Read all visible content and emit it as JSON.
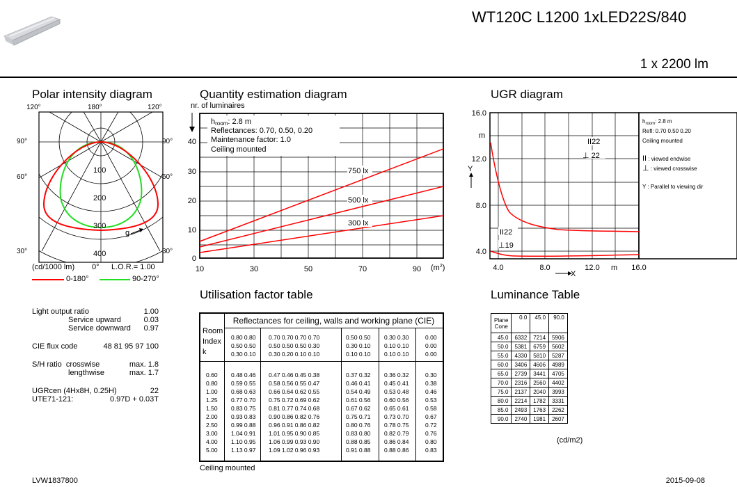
{
  "header": {
    "product": "WT120C L1200 1xLED22S/840",
    "flux": "1 x 2200 lm"
  },
  "polar": {
    "title": "Polar intensity diagram",
    "top_labels": [
      "120°",
      "180°",
      "120°"
    ],
    "side_left": [
      "90°",
      "60°",
      "30°"
    ],
    "side_right": [
      "90°",
      "60°",
      "30°"
    ],
    "rings": [
      "100",
      "200",
      "300",
      "400"
    ],
    "gamma_label": "g",
    "unit": "(cd/1000 lm)",
    "zero": "0°",
    "lor": "L.O.R.= 1.00",
    "legend_red": "0-180°",
    "legend_green": "90-270°",
    "red_color": "#ff0000",
    "green_color": "#22dd22"
  },
  "specs": {
    "rows": [
      {
        "label": "Light output ratio",
        "value": "1.00"
      },
      {
        "label": "Service upward",
        "value": "0.03"
      },
      {
        "label": "Service downward",
        "value": "0.97"
      }
    ],
    "cie_label": "CIE flux code",
    "cie_value": "48 81 95 97 100",
    "sh_label": "S/H ratio",
    "sh_cross": "crosswise",
    "sh_cross_val": "max. 1.8",
    "sh_length": "lengthwise",
    "sh_length_val": "max. 1.7",
    "ugr_label": "UGRcen (4Hx8H, 0.25H)",
    "ugr_value": "22",
    "ute_label": "UTE71-121:",
    "ute_value": "0.97D + 0.03T"
  },
  "quantity": {
    "title": "Quantity estimation diagram",
    "ylabel": "nr. of luminaires",
    "info": [
      "h",
      "room",
      ": 2.8 m",
      "Reflectances: 0.70, 0.50, 0.20",
      "Maintenance factor: 1.0",
      "Ceiling mounted"
    ],
    "y_ticks": [
      "40",
      "30",
      "20",
      "10",
      "0"
    ],
    "x_ticks": [
      "10",
      "30",
      "50",
      "70",
      "90"
    ],
    "x_unit": "(m",
    "x_unit_sup": "2",
    "x_unit_end": ")",
    "lines": [
      "750 lx",
      "500 lx",
      "300 lx"
    ]
  },
  "ugr": {
    "title": "UGR diagram",
    "y_ticks": [
      "16.0",
      "12.0",
      "8.0",
      "4.0"
    ],
    "y_unit": "m",
    "y_axis": "Y",
    "x_ticks": [
      "4.0",
      "8.0",
      "12.0",
      "16.0"
    ],
    "x_axis": "X",
    "x_unit": "m",
    "marker_end_22": "22",
    "marker_cross_22": "22",
    "marker_end_low": "22",
    "marker_cross_low": "19",
    "info": [
      "h",
      "room",
      ": 2.8 m",
      "Refl: 0.70 0.50 0.20",
      "Ceiling mounted",
      ": viewed endwise",
      ": viewed crosswise",
      "Y  : Parallel to viewing dir"
    ]
  },
  "utilisation": {
    "title": "Utilisation factor table",
    "header": "Reflectances for ceiling, walls and working plane (CIE)",
    "room_label": [
      "Room",
      "Index",
      "k"
    ],
    "refl_groups": [
      [
        "0.80 0.80",
        "0.50 0.50",
        "0.30 0.10"
      ],
      [
        "0.70 0.70 0.70 0.70",
        "0.50 0.50 0.50 0.30",
        "0.30 0.20 0.10 0.10"
      ],
      [
        "0.50 0.50",
        "0.30 0.10",
        "0.10 0.10"
      ],
      [
        "0.30 0.30",
        "0.10 0.10",
        "0.10 0.10"
      ],
      [
        "0.00",
        "0.00",
        "0.00"
      ]
    ],
    "k": [
      "0.60",
      "0.80",
      "1.00",
      "1.25",
      "1.50",
      "2.00",
      "2.50",
      "3.00",
      "4.00",
      "5.00"
    ],
    "g1": [
      "0.48 0.46",
      "0.59 0.55",
      "0.68 0.63",
      "0.77 0.70",
      "0.83 0.75",
      "0.93 0.83",
      "0.99 0.88",
      "1.04 0.91",
      "1.10 0.95",
      "1.13 0.97"
    ],
    "g2": [
      "0.47 0.46 0.45 0.38",
      "0.58 0.56 0.55 0.47",
      "0.66 0.64 0.62 0.55",
      "0.75 0.72 0.69 0.62",
      "0.81 0.77 0.74 0.68",
      "0.90 0.86 0.82 0.76",
      "0.96 0.91 0.86 0.82",
      "1.01 0.95 0.90 0.85",
      "1.06 0.99 0.93 0.90",
      "1.09 1.02 0.96 0.93"
    ],
    "g3": [
      "0.37 0.32",
      "0.46 0.41",
      "0.54 0.49",
      "0.61 0.56",
      "0.67 0.62",
      "0.75 0.71",
      "0.80 0.76",
      "0.83 0.80",
      "0.88 0.85",
      "0.91 0.88"
    ],
    "g4": [
      "0.36 0.32",
      "0.45 0.41",
      "0.53 0.48",
      "0.60 0.56",
      "0.65 0.61",
      "0.73 0.70",
      "0.78 0.75",
      "0.82 0.79",
      "0.86 0.84",
      "0.88 0.86"
    ],
    "g5": [
      "0.30",
      "0.38",
      "0.46",
      "0.53",
      "0.58",
      "0.67",
      "0.72",
      "0.76",
      "0.80",
      "0.83"
    ],
    "footer": "Ceiling mounted"
  },
  "luminance": {
    "title": "Luminance Table",
    "head_label": [
      "Plane",
      "Cone"
    ],
    "cols": [
      "0.0",
      "45.0",
      "90.0"
    ],
    "rows": [
      [
        "45.0",
        "6332",
        "7214",
        "5906"
      ],
      [
        "50.0",
        "5381",
        "6759",
        "5602"
      ],
      [
        "55.0",
        "4330",
        "5810",
        "5287"
      ],
      [
        "60.0",
        "3406",
        "4606",
        "4989"
      ],
      [
        "65.0",
        "2739",
        "3441",
        "4705"
      ],
      [
        "70.0",
        "2316",
        "2560",
        "4402"
      ],
      [
        "75.0",
        "2137",
        "2040",
        "3993"
      ],
      [
        "80.0",
        "2214",
        "1782",
        "3331"
      ],
      [
        "85.0",
        "2493",
        "1763",
        "2262"
      ],
      [
        "90.0",
        "2740",
        "1981",
        "2607"
      ]
    ],
    "unit": "(cd/m2)"
  },
  "footer": {
    "code": "LVW1837800",
    "date": "2015-09-08"
  }
}
